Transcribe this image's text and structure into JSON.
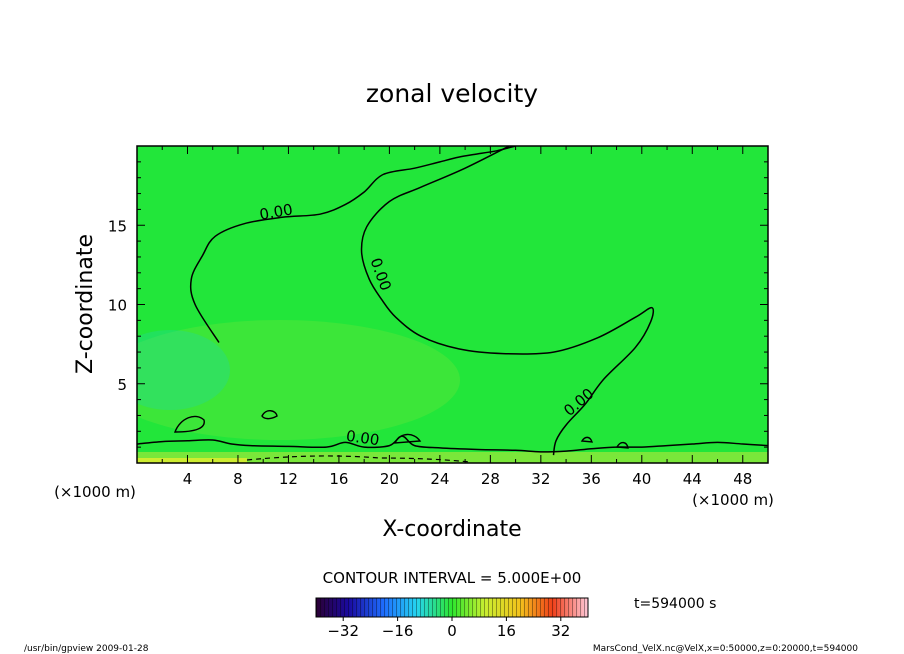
{
  "chart_data": {
    "type": "contour",
    "title": "zonal velocity",
    "xlabel": "X-coordinate",
    "ylabel": "Z-coordinate",
    "x_unit": "(×1000 m)",
    "y_unit": "(×1000 m)",
    "xlim": [
      0,
      50
    ],
    "ylim": [
      0,
      20
    ],
    "x_ticks": [
      4,
      8,
      12,
      16,
      20,
      24,
      28,
      32,
      36,
      40,
      44,
      48
    ],
    "y_ticks": [
      5,
      10,
      15
    ],
    "contour_interval_label": "CONTOUR INTERVAL = 5.000E+00",
    "contour_label": "0.00",
    "time_label": "t=594000 s",
    "colorbar": {
      "min": -40,
      "max": 40,
      "ticks": [
        -32,
        -16,
        0,
        16,
        32
      ],
      "colormap": "rainbow"
    },
    "background_color": "#22e63a",
    "footer_left": "/usr/bin/gpview 2009-01-28",
    "footer_right": "MarsCond_VelX.nc@VelX,x=0:50000,z=0:20000,t=594000",
    "zero_contours": [
      {
        "x": [
          6.5,
          4.6,
          4.3,
          5.2,
          6.2,
          8.5,
          11.5,
          14.5,
          16.5,
          18.0,
          19.5,
          22.0,
          24.0,
          25.5,
          27.0,
          28.5,
          29.5,
          30.0
        ],
        "y": [
          7.6,
          10.0,
          11.6,
          13.1,
          14.3,
          15.1,
          15.5,
          15.7,
          16.3,
          17.1,
          18.2,
          18.6,
          19.0,
          19.3,
          19.5,
          19.7,
          19.9,
          20.0
        ]
      },
      {
        "x": [
          29.5,
          26.0,
          22.5,
          20.0,
          18.2,
          17.8,
          18.4,
          19.4,
          20.5,
          22.5,
          25.5,
          29.0,
          33.0,
          36.5,
          39.5,
          40.8,
          40.7,
          39.5,
          37.0,
          35.5,
          34.0,
          33.2,
          33.0
        ],
        "y": [
          20.0,
          18.6,
          17.4,
          16.5,
          14.9,
          13.3,
          11.6,
          10.3,
          9.2,
          8.0,
          7.2,
          6.9,
          7.0,
          7.9,
          9.2,
          9.8,
          8.9,
          7.3,
          5.3,
          3.7,
          2.4,
          1.4,
          0.5
        ]
      },
      {
        "x": [
          0,
          2,
          4,
          6,
          7.5,
          9,
          12,
          15,
          16.5,
          18,
          20,
          21,
          22,
          24,
          27,
          30,
          32,
          34,
          36,
          38,
          40,
          42,
          44,
          46,
          48,
          50
        ],
        "y": [
          1.2,
          1.35,
          1.4,
          1.45,
          1.2,
          1.1,
          1.05,
          1.0,
          1.3,
          1.0,
          1.1,
          1.7,
          1.1,
          0.95,
          0.85,
          0.8,
          0.7,
          0.75,
          0.9,
          1.0,
          1.0,
          1.1,
          1.2,
          1.3,
          1.2,
          1.1
        ]
      }
    ]
  }
}
